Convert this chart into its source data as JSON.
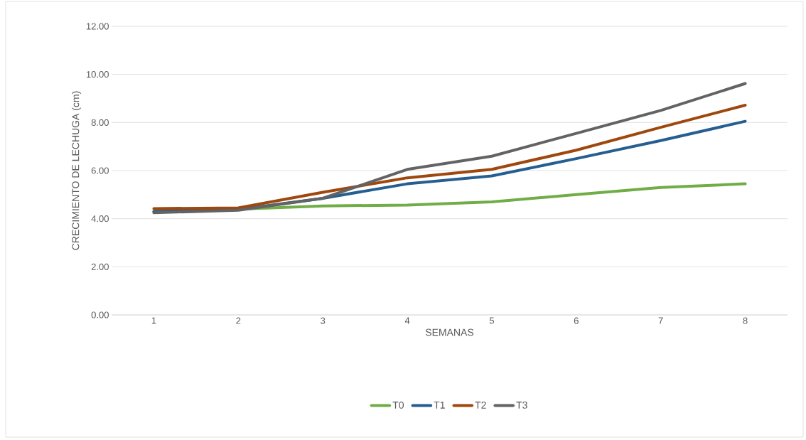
{
  "chart_data": {
    "type": "line",
    "xlabel": "SEMANAS",
    "ylabel": "CRECIMIENTO DE LECHUGA (cm)",
    "categories": [
      "1",
      "2",
      "3",
      "4",
      "5",
      "6",
      "7",
      "8"
    ],
    "series": [
      {
        "name": "T0",
        "color": "#70ad47",
        "values": [
          4.3,
          4.4,
          4.53,
          4.57,
          4.7,
          5.0,
          5.3,
          5.45
        ]
      },
      {
        "name": "T1",
        "color": "#255e91",
        "values": [
          4.3,
          4.38,
          4.85,
          5.45,
          5.78,
          6.5,
          7.25,
          8.05
        ]
      },
      {
        "name": "T2",
        "color": "#9e480e",
        "values": [
          4.42,
          4.45,
          5.1,
          5.7,
          6.05,
          6.85,
          7.8,
          8.72
        ]
      },
      {
        "name": "T3",
        "color": "#636363",
        "values": [
          4.25,
          4.35,
          4.85,
          6.05,
          6.6,
          7.55,
          8.5,
          9.62
        ]
      }
    ],
    "ylim": [
      0,
      12
    ],
    "yticks": [
      {
        "value": 0,
        "label": "0.00"
      },
      {
        "value": 2,
        "label": "2.00"
      },
      {
        "value": 4,
        "label": "4.00"
      },
      {
        "value": 6,
        "label": "6.00"
      },
      {
        "value": 8,
        "label": "8.00"
      },
      {
        "value": 10,
        "label": "10.00"
      },
      {
        "value": 12,
        "label": "12.00"
      }
    ],
    "grid": "y",
    "legend": "bottom",
    "marker": "none",
    "line_style": "solid"
  }
}
